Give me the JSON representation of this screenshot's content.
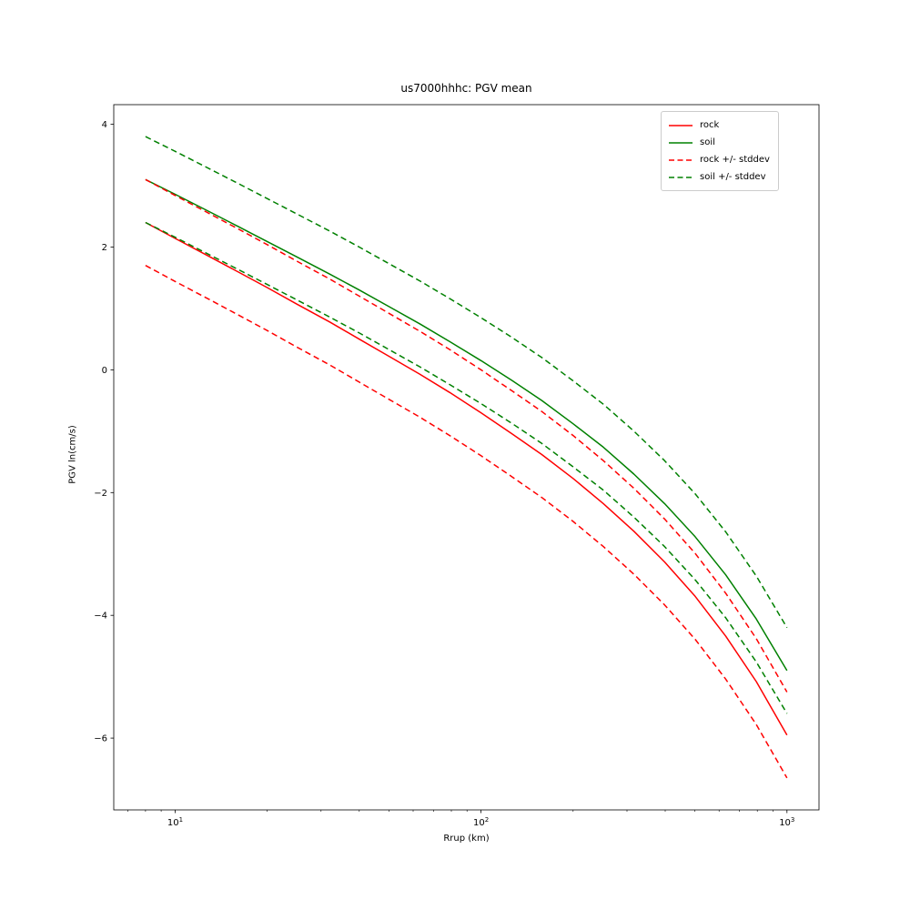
{
  "chart_data": {
    "type": "line",
    "title": "us7000hhhc: PGV mean",
    "xlabel": "Rrup (km)",
    "ylabel": "PGV ln(cm/s)",
    "x_scale": "log",
    "y_scale": "linear",
    "grid": false,
    "xlim": [
      6.3,
      1273
    ],
    "ylim": [
      -7.17,
      4.32
    ],
    "x": [
      8,
      10,
      13,
      16,
      20,
      25,
      32,
      40,
      50,
      63,
      79,
      100,
      126,
      158,
      200,
      251,
      316,
      398,
      501,
      631,
      794,
      1000
    ],
    "series": [
      {
        "name": "rock",
        "color": "#ff0000",
        "style": "solid",
        "values": [
          2.4,
          2.14,
          1.84,
          1.6,
          1.34,
          1.07,
          0.78,
          0.5,
          0.22,
          -0.07,
          -0.37,
          -0.7,
          -1.04,
          -1.38,
          -1.77,
          -2.18,
          -2.63,
          -3.13,
          -3.69,
          -4.34,
          -5.08,
          -5.95
        ]
      },
      {
        "name": "soil",
        "color": "#008000",
        "style": "solid",
        "values": [
          3.1,
          2.86,
          2.57,
          2.34,
          2.09,
          1.84,
          1.56,
          1.3,
          1.03,
          0.75,
          0.46,
          0.15,
          -0.17,
          -0.5,
          -0.88,
          -1.26,
          -1.7,
          -2.18,
          -2.72,
          -3.34,
          -4.06,
          -4.9
        ]
      },
      {
        "name": "rock + stddev",
        "color": "#ff0000",
        "style": "dashed",
        "values": [
          3.1,
          2.84,
          2.54,
          2.3,
          2.04,
          1.77,
          1.48,
          1.2,
          0.92,
          0.63,
          0.33,
          0.0,
          -0.34,
          -0.68,
          -1.07,
          -1.48,
          -1.93,
          -2.43,
          -2.99,
          -3.64,
          -4.38,
          -5.25
        ]
      },
      {
        "name": "rock - stddev",
        "color": "#ff0000",
        "style": "dashed",
        "values": [
          1.7,
          1.44,
          1.14,
          0.9,
          0.64,
          0.37,
          0.08,
          -0.2,
          -0.48,
          -0.77,
          -1.07,
          -1.4,
          -1.74,
          -2.08,
          -2.47,
          -2.88,
          -3.33,
          -3.83,
          -4.39,
          -5.04,
          -5.78,
          -6.65
        ]
      },
      {
        "name": "soil + stddev",
        "color": "#008000",
        "style": "dashed",
        "values": [
          3.8,
          3.56,
          3.27,
          3.04,
          2.79,
          2.54,
          2.26,
          2.0,
          1.73,
          1.45,
          1.16,
          0.85,
          0.53,
          0.2,
          -0.18,
          -0.56,
          -1.0,
          -1.48,
          -2.02,
          -2.64,
          -3.36,
          -4.2
        ]
      },
      {
        "name": "soil - stddev",
        "color": "#008000",
        "style": "dashed",
        "values": [
          2.4,
          2.16,
          1.87,
          1.64,
          1.39,
          1.14,
          0.86,
          0.6,
          0.33,
          0.05,
          -0.24,
          -0.55,
          -0.87,
          -1.2,
          -1.58,
          -1.96,
          -2.4,
          -2.88,
          -3.42,
          -4.04,
          -4.76,
          -5.6
        ]
      }
    ],
    "legend": {
      "position": "upper right",
      "entries": [
        {
          "label": "rock",
          "color": "#ff0000",
          "style": "solid"
        },
        {
          "label": "soil",
          "color": "#008000",
          "style": "solid"
        },
        {
          "label": "rock +/- stddev",
          "color": "#ff0000",
          "style": "dashed"
        },
        {
          "label": "soil +/- stddev",
          "color": "#008000",
          "style": "dashed"
        }
      ]
    },
    "x_ticks": [
      {
        "value": 10,
        "base": "10",
        "exp": "1"
      },
      {
        "value": 100,
        "base": "10",
        "exp": "2"
      },
      {
        "value": 1000,
        "base": "10",
        "exp": "3"
      }
    ],
    "x_minor_ticks": [
      7,
      8,
      9,
      20,
      30,
      40,
      50,
      60,
      70,
      80,
      90,
      200,
      300,
      400,
      500,
      600,
      700,
      800,
      900
    ],
    "y_ticks": [
      {
        "value": 4,
        "label": "4"
      },
      {
        "value": 2,
        "label": "2"
      },
      {
        "value": 0,
        "label": "0"
      },
      {
        "value": -2,
        "label": "−2"
      },
      {
        "value": -4,
        "label": "−4"
      },
      {
        "value": -6,
        "label": "−6"
      }
    ]
  }
}
